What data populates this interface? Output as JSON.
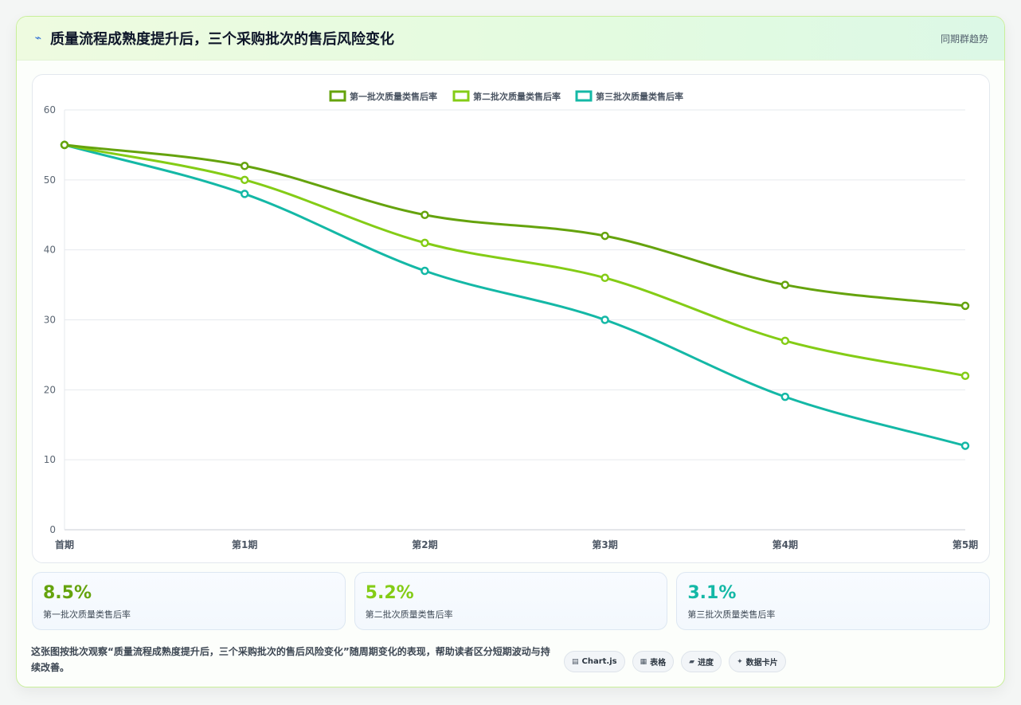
{
  "header": {
    "title": "质量流程成熟度提升后，三个采购批次的售后风险变化",
    "tag": "同期群趋势"
  },
  "chart_data": {
    "type": "line",
    "categories": [
      "首期",
      "第1期",
      "第2期",
      "第3期",
      "第4期",
      "第5期"
    ],
    "ylim": [
      0,
      60
    ],
    "yticks": [
      0,
      10,
      20,
      30,
      40,
      50,
      60
    ],
    "grid": true,
    "legend": "top-center",
    "series": [
      {
        "name": "第一批次质量类售后率",
        "color": "#65a30d",
        "values": [
          55,
          52,
          45,
          42,
          35,
          32
        ]
      },
      {
        "name": "第二批次质量类售后率",
        "color": "#84cc16",
        "values": [
          55,
          50,
          41,
          36,
          27,
          22
        ]
      },
      {
        "name": "第三批次质量类售后率",
        "color": "#14b8a6",
        "values": [
          55,
          48,
          37,
          30,
          19,
          12
        ]
      }
    ]
  },
  "stats": [
    {
      "value": "8.5%",
      "label": "第一批次质量类售后率",
      "color": "#65a30d"
    },
    {
      "value": "5.2%",
      "label": "第二批次质量类售后率",
      "color": "#84cc16"
    },
    {
      "value": "3.1%",
      "label": "第三批次质量类售后率",
      "color": "#14b8a6"
    }
  ],
  "footer": {
    "description": "这张图按批次观察“质量流程成熟度提升后，三个采购批次的售后风险变化”随周期变化的表现，帮助读者区分短期波动与持续改善。",
    "chips": [
      {
        "icon": "▤",
        "label": "Chart.js"
      },
      {
        "icon": "▦",
        "label": "表格"
      },
      {
        "icon": "▰",
        "label": "进度"
      },
      {
        "icon": "✦",
        "label": "数据卡片"
      }
    ]
  }
}
